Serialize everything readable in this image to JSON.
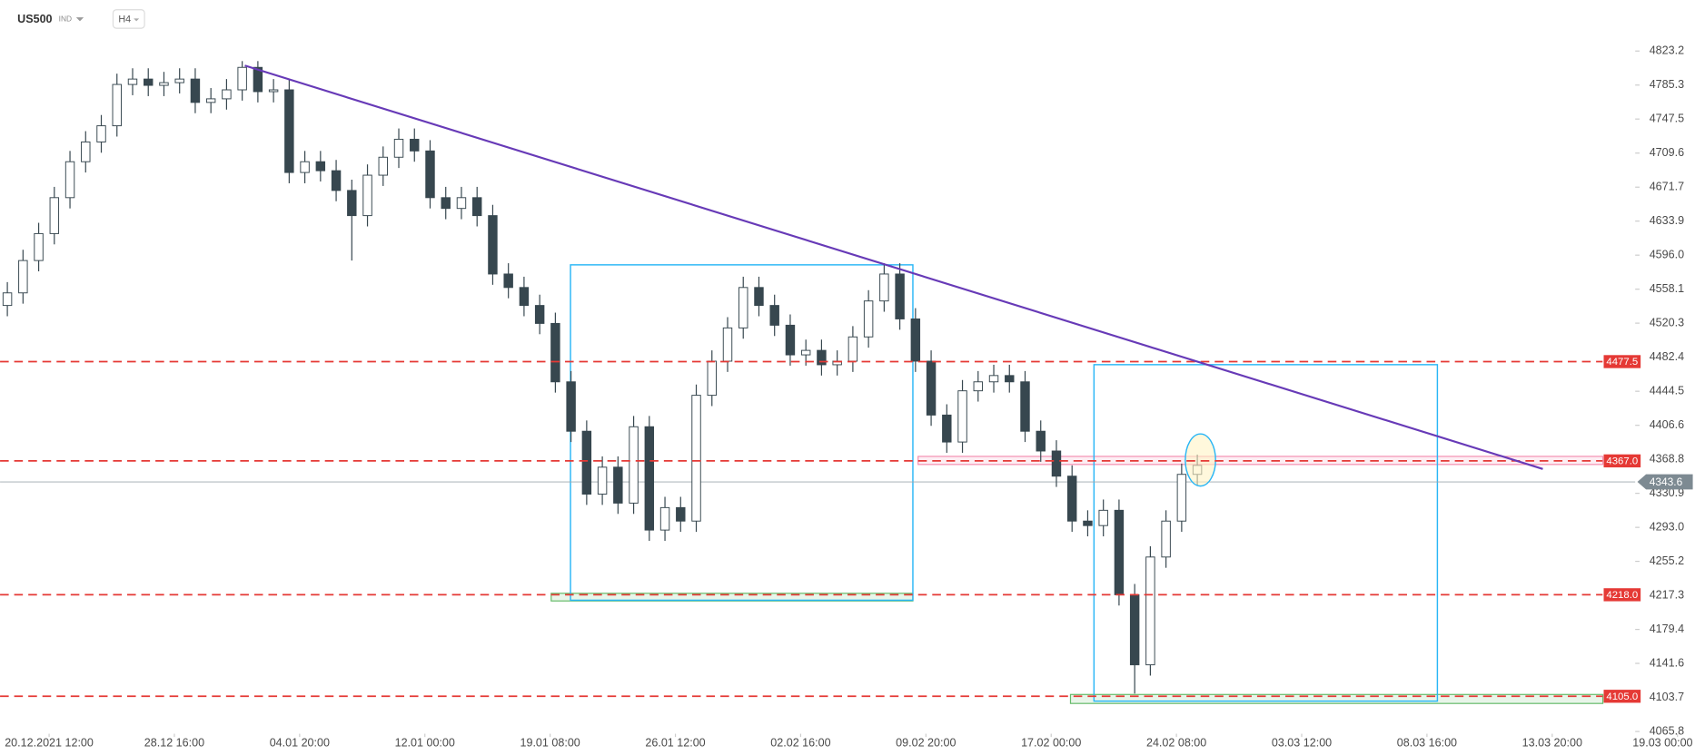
{
  "header": {
    "symbol": "US500",
    "market": "IND",
    "interval": "H4"
  },
  "chart_data": {
    "type": "candlestick",
    "xlim": [
      -1.4,
      311.9
    ],
    "ylim": [
      4063.3,
      4880.0
    ],
    "xticks": [
      {
        "value": 8,
        "label": "20.12.2021  12:00"
      },
      {
        "value": 32,
        "label": "28.12  16:00"
      },
      {
        "value": 56,
        "label": "04.01  20:00"
      },
      {
        "value": 80,
        "label": "12.01  00:00"
      },
      {
        "value": 104,
        "label": "19.01  08:00"
      },
      {
        "value": 128,
        "label": "26.01  12:00"
      },
      {
        "value": 152,
        "label": "02.02  16:00"
      },
      {
        "value": 176,
        "label": "09.02  20:00"
      },
      {
        "value": 200,
        "label": "17.02  00:00"
      },
      {
        "value": 224,
        "label": "24.02  08:00"
      },
      {
        "value": 248,
        "label": "03.03  12:00"
      },
      {
        "value": 272,
        "label": "08.03  16:00"
      },
      {
        "value": 296,
        "label": "13.03  20:00"
      },
      {
        "value": 320,
        "label": "19.03  00:00"
      }
    ],
    "yticks": [
      4823.2,
      4785.3,
      4747.5,
      4709.6,
      4671.7,
      4633.9,
      {
        "value": 4596,
        "label": "4596.0"
      },
      4558.1,
      4520.3,
      4482.4,
      4444.5,
      4406.6,
      4368.8,
      4330.9,
      {
        "value": 4293,
        "label": "4293.0"
      },
      4255.2,
      4217.3,
      4179.4,
      4141.6,
      4103.7,
      4065.8
    ],
    "up_color": "#ffffff",
    "down_color": "#37474f",
    "wick_color": "#37474f",
    "series": [
      {
        "x": [
          0,
          3,
          6,
          9,
          12,
          15,
          18,
          21,
          24,
          27,
          30,
          33,
          36,
          39,
          42,
          45,
          48,
          51,
          54,
          57,
          60,
          63,
          66,
          69,
          72,
          75,
          78,
          81,
          84,
          87,
          90,
          93,
          96,
          99,
          102,
          105,
          108,
          111,
          114,
          117,
          120,
          123,
          126,
          129,
          132,
          135,
          138,
          141,
          144,
          147,
          150,
          153,
          156,
          159,
          162,
          165,
          168,
          171,
          174,
          177,
          180,
          183,
          186,
          189,
          192,
          195,
          198,
          201,
          204,
          207,
          210,
          213,
          216,
          219,
          222,
          225,
          228
        ],
        "open": [
          4540,
          4554,
          4590,
          4620,
          4660,
          4700,
          4722,
          4740,
          4786,
          4792,
          4785,
          4788,
          4792,
          4766,
          4770,
          4780,
          4805,
          4778,
          4780,
          4688,
          4700,
          4690,
          4668,
          4640,
          4685,
          4705,
          4725,
          4712,
          4660,
          4648,
          4660,
          4640,
          4575,
          4560,
          4540,
          4520,
          4455,
          4400,
          4330,
          4360,
          4320,
          4405,
          4290,
          4315,
          4300,
          4440,
          4478,
          4515,
          4560,
          4540,
          4518,
          4485,
          4490,
          4474,
          4478,
          4505,
          4545,
          4575,
          4525,
          4478,
          4418,
          4388,
          4445,
          4455,
          4462,
          4455,
          4400,
          4378,
          4350,
          4300,
          4295,
          4312,
          4218,
          4140,
          4260,
          4300,
          4352
        ],
        "high": [
          4566,
          4602,
          4632,
          4672,
          4712,
          4734,
          4752,
          4798,
          4804,
          4804,
          4800,
          4804,
          4804,
          4782,
          4792,
          4812,
          4812,
          4792,
          4792,
          4712,
          4712,
          4702,
          4680,
          4697,
          4717,
          4737,
          4737,
          4724,
          4672,
          4672,
          4672,
          4652,
          4587,
          4572,
          4552,
          4532,
          4467,
          4412,
          4372,
          4372,
          4417,
          4417,
          4327,
          4327,
          4452,
          4490,
          4527,
          4572,
          4572,
          4552,
          4530,
          4502,
          4502,
          4490,
          4517,
          4557,
          4587,
          4587,
          4537,
          4490,
          4430,
          4457,
          4467,
          4474,
          4474,
          4467,
          4412,
          4390,
          4362,
          4312,
          4324,
          4324,
          4230,
          4272,
          4312,
          4364,
          4374
        ],
        "low": [
          4528,
          4542,
          4578,
          4608,
          4648,
          4688,
          4710,
          4728,
          4774,
          4773,
          4773,
          4776,
          4754,
          4754,
          4758,
          4768,
          4766,
          4766,
          4676,
          4676,
          4678,
          4656,
          4590,
          4628,
          4673,
          4693,
          4700,
          4648,
          4636,
          4636,
          4628,
          4563,
          4548,
          4528,
          4508,
          4443,
          4388,
          4318,
          4318,
          4308,
          4308,
          4278,
          4278,
          4288,
          4288,
          4428,
          4466,
          4503,
          4528,
          4506,
          4473,
          4473,
          4462,
          4462,
          4466,
          4493,
          4533,
          4513,
          4466,
          4406,
          4376,
          4376,
          4433,
          4443,
          4443,
          4388,
          4366,
          4338,
          4288,
          4283,
          4283,
          4206,
          4108,
          4128,
          4248,
          4288,
          4340
        ],
        "close": [
          4554,
          4590,
          4620,
          4660,
          4700,
          4722,
          4740,
          4786,
          4792,
          4785,
          4788,
          4792,
          4766,
          4770,
          4780,
          4805,
          4778,
          4780,
          4688,
          4700,
          4690,
          4668,
          4640,
          4685,
          4705,
          4725,
          4712,
          4660,
          4648,
          4660,
          4640,
          4575,
          4560,
          4540,
          4520,
          4455,
          4400,
          4330,
          4360,
          4320,
          4405,
          4290,
          4315,
          4300,
          4440,
          4478,
          4515,
          4560,
          4540,
          4518,
          4485,
          4490,
          4474,
          4478,
          4505,
          4545,
          4575,
          4525,
          4478,
          4418,
          4388,
          4445,
          4455,
          4462,
          4455,
          4400,
          4378,
          4350,
          4300,
          4295,
          4312,
          4218,
          4140,
          4260,
          4300,
          4352,
          4362
        ]
      }
    ],
    "levels": [
      4477.5,
      {
        "value": 4367,
        "label": "4367.0"
      },
      {
        "value": 4218,
        "label": "4218.0"
      },
      {
        "value": 4105,
        "label": "4105.0"
      }
    ],
    "level_color": "#e53935",
    "last_price": 4343.6,
    "last_price_color": "#7d8a92",
    "trendline": {
      "x": [
        45.5,
        294.2
      ],
      "y": [
        4807,
        4358
      ],
      "color": "#673ab7"
    },
    "boxes": [
      {
        "xlim": [
          107.9,
          173.5
        ],
        "ylim": [
          4211.9,
          4585.2
        ],
        "color": "#29b6f6"
      },
      {
        "xlim": [
          208.2,
          274.0
        ],
        "ylim": [
          4099.6,
          4474.1
        ],
        "color": "#29b6f6"
      }
    ],
    "zones": [
      {
        "xlim": [
          104.2,
          173.5
        ],
        "ylim": [
          4211.1,
          4219.6
        ],
        "color": "#66bb6a"
      },
      {
        "xlim": [
          203.7,
          305.7
        ],
        "ylim": [
          4097.0,
          4107.0
        ],
        "color": "#66bb6a"
      },
      {
        "xlim": [
          174.5,
          305.7
        ],
        "ylim": [
          4363.0,
          4372.0
        ],
        "color": "#f48fb1"
      }
    ],
    "highlight": {
      "x": 228.6,
      "y": 4368,
      "rx": 2.9,
      "ry": 29,
      "color": "#fff3c4"
    }
  }
}
